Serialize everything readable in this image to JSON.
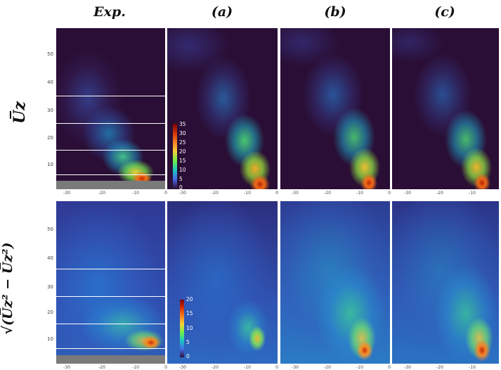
{
  "column_headers": [
    "Exp.",
    "(a)",
    "(b)",
    "(c)"
  ],
  "row_labels": {
    "mean": "U̅z",
    "rms": "√(U̅z² − U̅z²)"
  },
  "y_ticks": [
    "50",
    "40",
    "30",
    "20",
    "10"
  ],
  "x_ticks": [
    "-30",
    "-20",
    "-10",
    "0"
  ],
  "colorbar_top": {
    "ticks": [
      "35",
      "30",
      "25",
      "20",
      "15",
      "10",
      "5",
      "0"
    ],
    "colormap": "turbo"
  },
  "colorbar_bottom": {
    "ticks": [
      "20",
      "15",
      "10",
      "5",
      "0"
    ],
    "colormap": "turbo"
  },
  "colors": {
    "background_dark": "#2a0e35",
    "floor_gray": "#7a7a7a"
  }
}
